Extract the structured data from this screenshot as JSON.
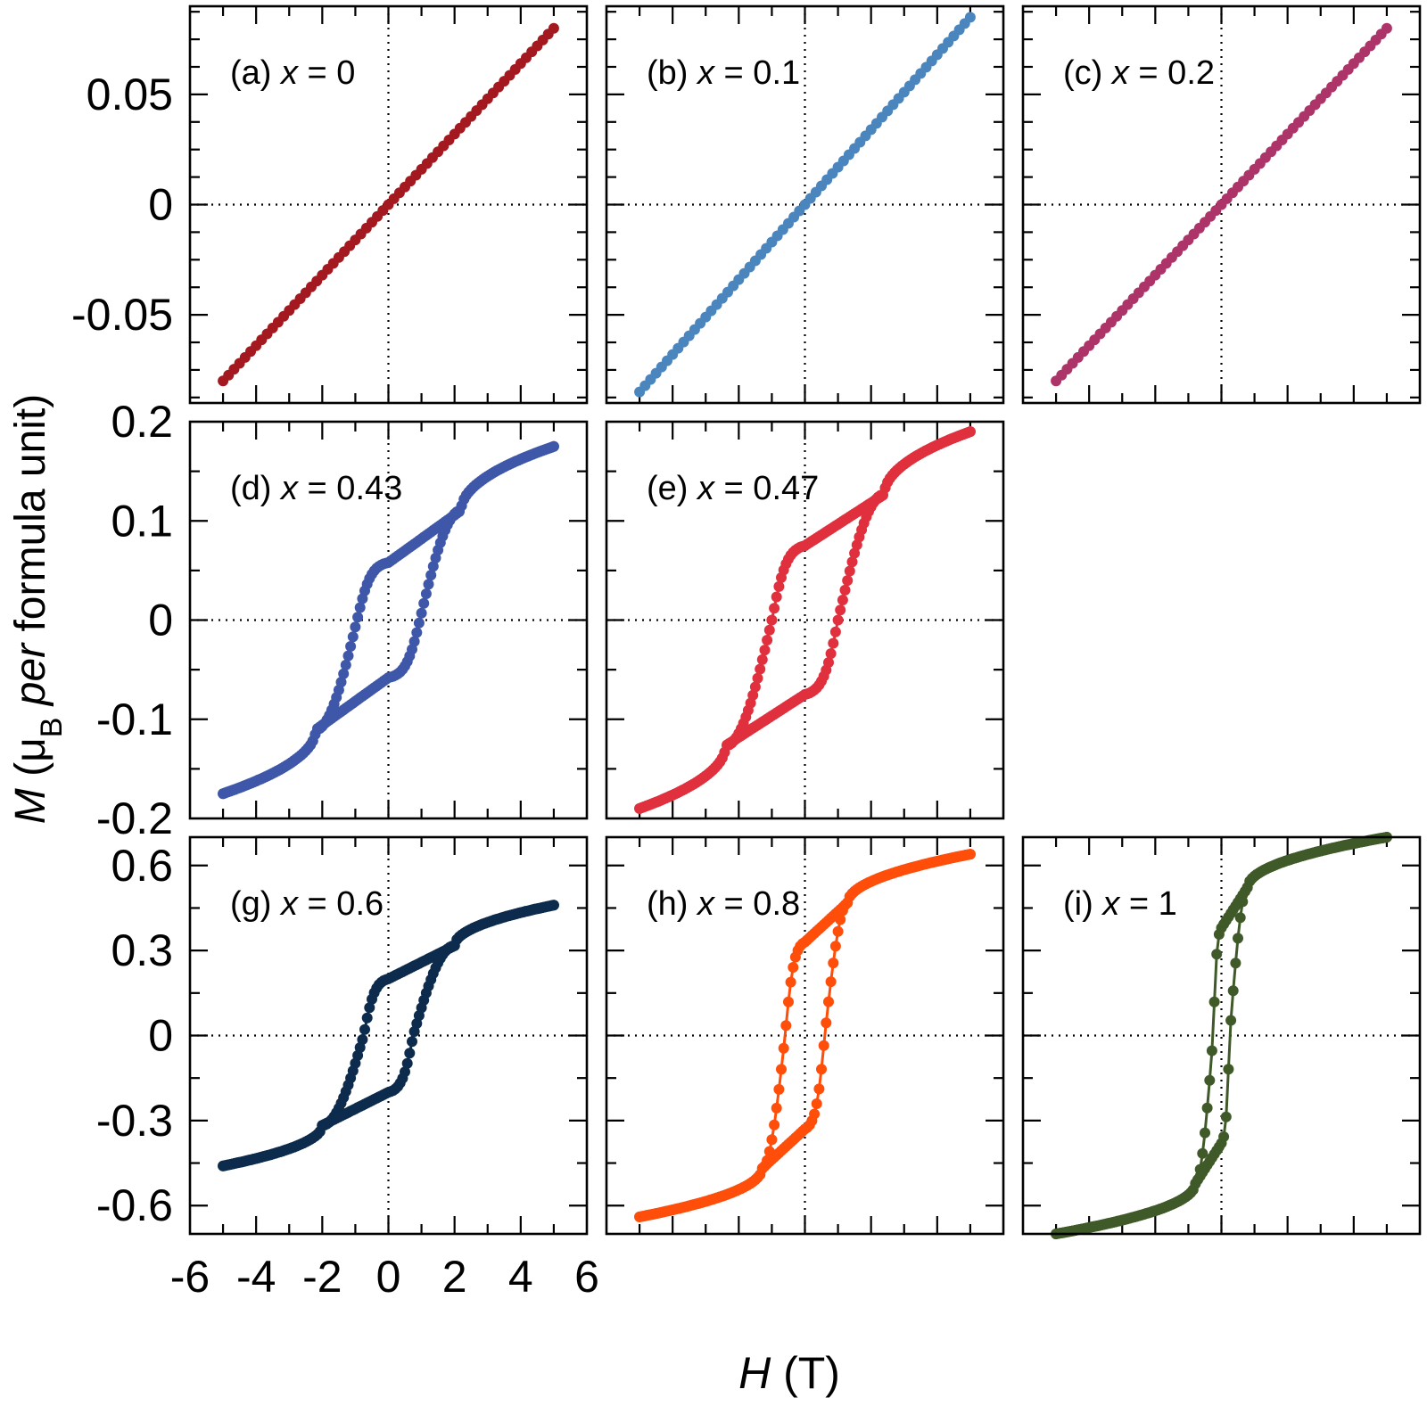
{
  "figure": {
    "xlabel_var": "H",
    "xlabel_unit": " (T)",
    "ylabel_var": "M",
    "ylabel_pre": " (μ",
    "ylabel_sub": "B",
    "ylabel_italic": " per",
    "ylabel_post": " formula unit)",
    "x_tick_labels": [
      "-6",
      "-4",
      "-2",
      "0",
      "2",
      "4",
      "6"
    ],
    "row_y_tick_labels": [
      [
        "0.05",
        "0",
        "-0.05"
      ],
      [
        "0.2",
        "0.1",
        "0",
        "-0.1",
        "-0.2"
      ],
      [
        "0.6",
        "0.3",
        "0",
        "-0.3",
        "-0.6"
      ]
    ]
  },
  "chart_data": [
    {
      "id": "a",
      "panel_label": "(a)",
      "x_text": "x",
      "value_text": " = 0",
      "type": "scatter",
      "shape": "linear",
      "color": "#a3191f",
      "row": 0,
      "col": 0,
      "xlim": [
        -6,
        6
      ],
      "ylim": [
        -0.09,
        0.09
      ],
      "h_max": 5,
      "m_max": 0.08,
      "coercive_field": 0,
      "remanence": 0
    },
    {
      "id": "b",
      "panel_label": "(b)",
      "x_text": "x",
      "value_text": " = 0.1",
      "type": "scatter",
      "shape": "linear",
      "color": "#4a86bd",
      "row": 0,
      "col": 1,
      "xlim": [
        -6,
        6
      ],
      "ylim": [
        -0.09,
        0.09
      ],
      "h_max": 5,
      "m_max": 0.085,
      "coercive_field": 0,
      "remanence": 0
    },
    {
      "id": "c",
      "panel_label": "(c)",
      "x_text": "x",
      "value_text": " = 0.2",
      "type": "scatter",
      "shape": "linear",
      "color": "#ad3468",
      "row": 0,
      "col": 2,
      "xlim": [
        -6,
        6
      ],
      "ylim": [
        -0.09,
        0.09
      ],
      "h_max": 5,
      "m_max": 0.08,
      "coercive_field": 0,
      "remanence": 0
    },
    {
      "id": "d",
      "panel_label": "(d)",
      "x_text": "x",
      "value_text": " = 0.43",
      "type": "scatter",
      "shape": "loop",
      "color": "#3f57a8",
      "row": 1,
      "col": 0,
      "xlim": [
        -6,
        6
      ],
      "ylim": [
        -0.2,
        0.2
      ],
      "h_max": 5,
      "m_max": 0.175,
      "coercive_field": 0.95,
      "remanence": 0.058,
      "knee_field": 2.2
    },
    {
      "id": "e",
      "panel_label": "(e)",
      "x_text": "x",
      "value_text": " = 0.47",
      "type": "scatter",
      "shape": "loop",
      "color": "#e0303e",
      "row": 1,
      "col": 1,
      "xlim": [
        -6,
        6
      ],
      "ylim": [
        -0.2,
        0.2
      ],
      "h_max": 5,
      "m_max": 0.19,
      "coercive_field": 1.0,
      "remanence": 0.075,
      "knee_field": 2.4
    },
    {
      "id": "g",
      "panel_label": "(g)",
      "x_text": "x",
      "value_text": " = 0.6",
      "type": "scatter",
      "shape": "loop",
      "color": "#0d2b4c",
      "row": 2,
      "col": 0,
      "xlim": [
        -6,
        6
      ],
      "ylim": [
        -0.7,
        0.7
      ],
      "h_max": 5,
      "m_max": 0.46,
      "coercive_field": 0.75,
      "remanence": 0.2,
      "knee_field": 2.0
    },
    {
      "id": "h",
      "panel_label": "(h)",
      "x_text": "x",
      "value_text": " = 0.8",
      "type": "scatter",
      "shape": "loop",
      "color": "#ff4d0a",
      "row": 2,
      "col": 1,
      "xlim": [
        -6,
        6
      ],
      "ylim": [
        -0.7,
        0.7
      ],
      "h_max": 5,
      "m_max": 0.64,
      "coercive_field": 0.6,
      "remanence": 0.33,
      "knee_field": 1.3
    },
    {
      "id": "i",
      "panel_label": "(i)",
      "x_text": "x",
      "value_text": " = 1",
      "type": "scatter",
      "shape": "loop",
      "color": "#3f5a28",
      "row": 2,
      "col": 2,
      "xlim": [
        -6,
        6
      ],
      "ylim": [
        -0.7,
        0.7
      ],
      "h_max": 5,
      "m_max": 0.7,
      "coercive_field": 0.25,
      "remanence": 0.38,
      "knee_field": 0.8
    }
  ]
}
